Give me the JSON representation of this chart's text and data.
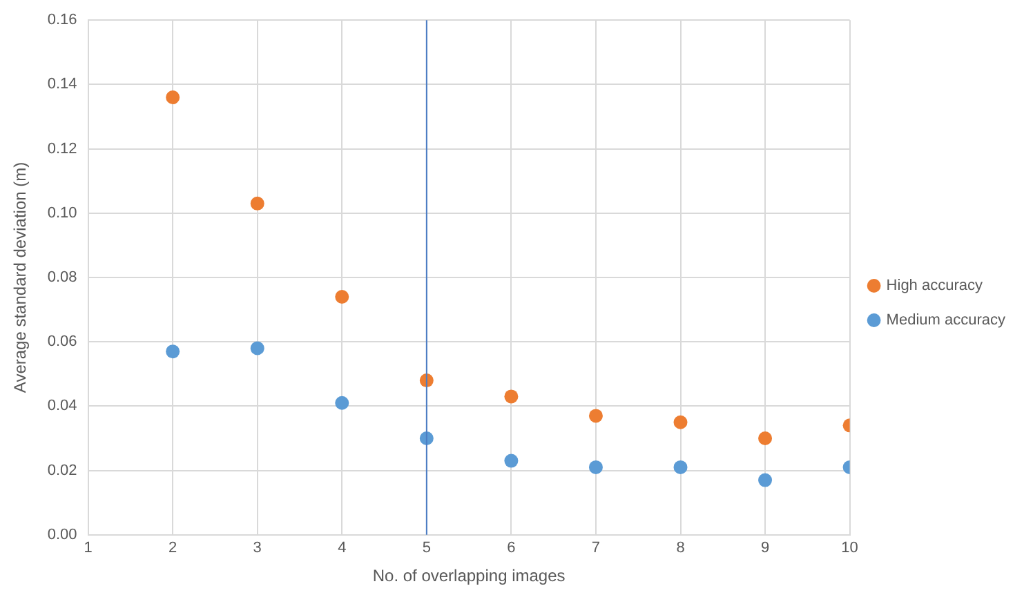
{
  "chart_data": {
    "type": "scatter",
    "xlabel": "No. of overlapping images",
    "ylabel": "Average standard deviation (m)",
    "x": [
      2,
      3,
      4,
      5,
      6,
      7,
      8,
      9,
      10
    ],
    "series": [
      {
        "name": "High accuracy",
        "color": "#ed7d31",
        "values": [
          0.136,
          0.103,
          0.074,
          0.048,
          0.043,
          0.037,
          0.035,
          0.03,
          0.034
        ]
      },
      {
        "name": "Medium accuracy",
        "color": "#5b9bd5",
        "values": [
          0.057,
          0.058,
          0.041,
          0.03,
          0.023,
          0.021,
          0.021,
          0.017,
          0.021
        ]
      }
    ],
    "xlim": [
      1,
      10
    ],
    "xticks": [
      1,
      2,
      3,
      4,
      5,
      6,
      7,
      8,
      9,
      10
    ],
    "ylim": [
      0,
      0.16
    ],
    "yticks": [
      {
        "value": 0,
        "label": "0.00"
      },
      {
        "value": 0.02,
        "label": "0.02"
      },
      {
        "value": 0.04,
        "label": "0.04"
      },
      {
        "value": 0.06,
        "label": "0.06"
      },
      {
        "value": 0.08,
        "label": "0.08"
      },
      {
        "value": 0.1,
        "label": "0.10"
      },
      {
        "value": 0.12,
        "label": "0.12"
      },
      {
        "value": 0.14,
        "label": "0.14"
      },
      {
        "value": 0.16,
        "label": "0.16"
      }
    ],
    "ref_lines": [
      {
        "axis": "x",
        "value": 5,
        "color": "#4a7cc4"
      }
    ],
    "grid": true,
    "legend": "right",
    "marker": "circle"
  }
}
